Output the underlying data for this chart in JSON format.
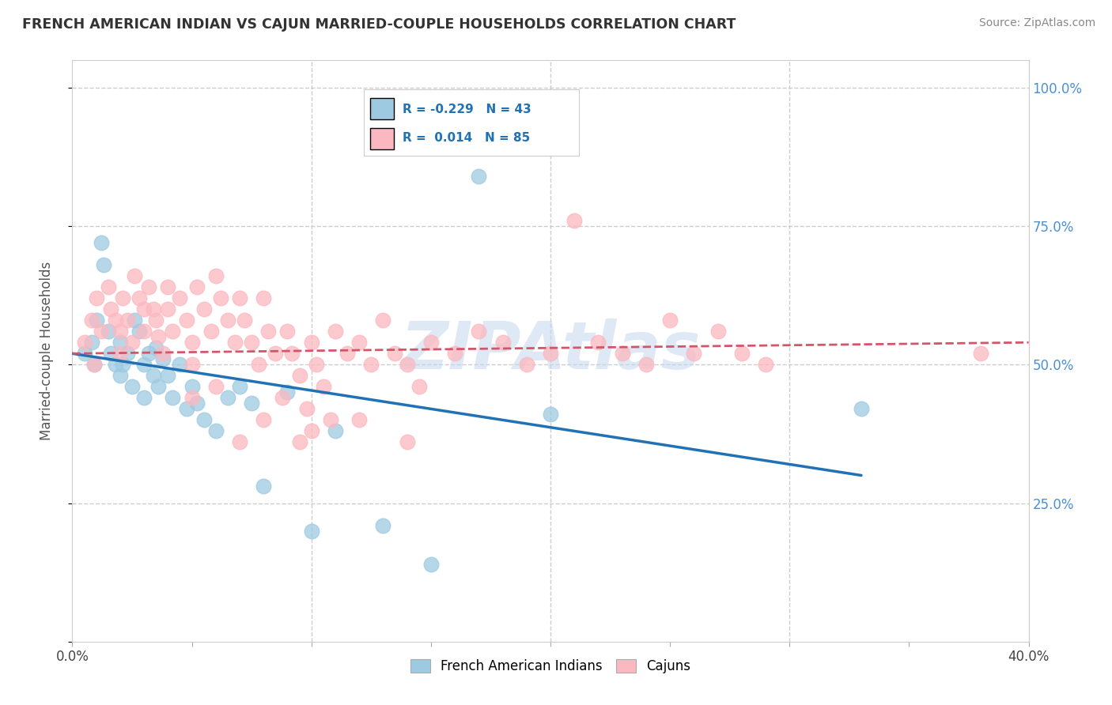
{
  "title": "FRENCH AMERICAN INDIAN VS CAJUN MARRIED-COUPLE HOUSEHOLDS CORRELATION CHART",
  "source": "Source: ZipAtlas.com",
  "ylabel": "Married-couple Households",
  "watermark": "ZIPAtlas",
  "blue_color": "#9ecae1",
  "pink_color": "#fcb8c0",
  "blue_line_color": "#2171b5",
  "pink_line_color": "#d6546a",
  "background_color": "#ffffff",
  "grid_color": "#c8c8c8",
  "blue_scatter": [
    [
      0.5,
      52
    ],
    [
      0.8,
      54
    ],
    [
      0.9,
      50
    ],
    [
      1.0,
      58
    ],
    [
      1.2,
      72
    ],
    [
      1.3,
      68
    ],
    [
      1.5,
      56
    ],
    [
      1.6,
      52
    ],
    [
      1.8,
      50
    ],
    [
      2.0,
      48
    ],
    [
      2.0,
      54
    ],
    [
      2.1,
      50
    ],
    [
      2.3,
      52
    ],
    [
      2.5,
      46
    ],
    [
      2.6,
      58
    ],
    [
      2.8,
      56
    ],
    [
      3.0,
      50
    ],
    [
      3.0,
      44
    ],
    [
      3.2,
      52
    ],
    [
      3.4,
      48
    ],
    [
      3.5,
      53
    ],
    [
      3.6,
      46
    ],
    [
      3.8,
      51
    ],
    [
      4.0,
      48
    ],
    [
      4.2,
      44
    ],
    [
      4.5,
      50
    ],
    [
      4.8,
      42
    ],
    [
      5.0,
      46
    ],
    [
      5.2,
      43
    ],
    [
      5.5,
      40
    ],
    [
      6.0,
      38
    ],
    [
      6.5,
      44
    ],
    [
      7.0,
      46
    ],
    [
      7.5,
      43
    ],
    [
      8.0,
      28
    ],
    [
      9.0,
      45
    ],
    [
      10.0,
      20
    ],
    [
      11.0,
      38
    ],
    [
      13.0,
      21
    ],
    [
      15.0,
      14
    ],
    [
      17.0,
      84
    ],
    [
      20.0,
      41
    ],
    [
      33.0,
      42
    ]
  ],
  "pink_scatter": [
    [
      0.5,
      54
    ],
    [
      0.8,
      58
    ],
    [
      0.9,
      50
    ],
    [
      1.0,
      62
    ],
    [
      1.2,
      56
    ],
    [
      1.5,
      64
    ],
    [
      1.6,
      60
    ],
    [
      1.8,
      58
    ],
    [
      2.0,
      56
    ],
    [
      2.0,
      52
    ],
    [
      2.1,
      62
    ],
    [
      2.3,
      58
    ],
    [
      2.5,
      54
    ],
    [
      2.6,
      66
    ],
    [
      2.8,
      62
    ],
    [
      3.0,
      60
    ],
    [
      3.0,
      56
    ],
    [
      3.2,
      64
    ],
    [
      3.4,
      60
    ],
    [
      3.5,
      58
    ],
    [
      3.6,
      55
    ],
    [
      3.8,
      52
    ],
    [
      4.0,
      64
    ],
    [
      4.0,
      60
    ],
    [
      4.2,
      56
    ],
    [
      4.5,
      62
    ],
    [
      4.8,
      58
    ],
    [
      5.0,
      54
    ],
    [
      5.0,
      50
    ],
    [
      5.2,
      64
    ],
    [
      5.5,
      60
    ],
    [
      5.8,
      56
    ],
    [
      6.0,
      66
    ],
    [
      6.2,
      62
    ],
    [
      6.5,
      58
    ],
    [
      6.8,
      54
    ],
    [
      7.0,
      62
    ],
    [
      7.2,
      58
    ],
    [
      7.5,
      54
    ],
    [
      7.8,
      50
    ],
    [
      8.0,
      62
    ],
    [
      8.2,
      56
    ],
    [
      8.5,
      52
    ],
    [
      8.8,
      44
    ],
    [
      9.0,
      56
    ],
    [
      9.2,
      52
    ],
    [
      9.5,
      48
    ],
    [
      9.8,
      42
    ],
    [
      10.0,
      54
    ],
    [
      10.2,
      50
    ],
    [
      10.5,
      46
    ],
    [
      10.8,
      40
    ],
    [
      11.0,
      56
    ],
    [
      11.5,
      52
    ],
    [
      12.0,
      54
    ],
    [
      12.5,
      50
    ],
    [
      13.0,
      58
    ],
    [
      13.5,
      52
    ],
    [
      14.0,
      50
    ],
    [
      14.5,
      46
    ],
    [
      15.0,
      54
    ],
    [
      16.0,
      52
    ],
    [
      17.0,
      56
    ],
    [
      18.0,
      54
    ],
    [
      19.0,
      50
    ],
    [
      20.0,
      52
    ],
    [
      21.0,
      76
    ],
    [
      22.0,
      54
    ],
    [
      23.0,
      52
    ],
    [
      24.0,
      50
    ],
    [
      25.0,
      58
    ],
    [
      26.0,
      52
    ],
    [
      27.0,
      56
    ],
    [
      28.0,
      52
    ],
    [
      29.0,
      50
    ],
    [
      5.0,
      44
    ],
    [
      6.0,
      46
    ],
    [
      7.0,
      36
    ],
    [
      8.0,
      40
    ],
    [
      9.5,
      36
    ],
    [
      10.0,
      38
    ],
    [
      12.0,
      40
    ],
    [
      14.0,
      36
    ],
    [
      38.0,
      52
    ]
  ],
  "xlim": [
    0,
    40
  ],
  "ylim": [
    0,
    105
  ],
  "blue_line_x": [
    0,
    33
  ],
  "blue_line_y": [
    52,
    30
  ],
  "pink_line_x": [
    0,
    40
  ],
  "pink_line_y": [
    52,
    54
  ]
}
